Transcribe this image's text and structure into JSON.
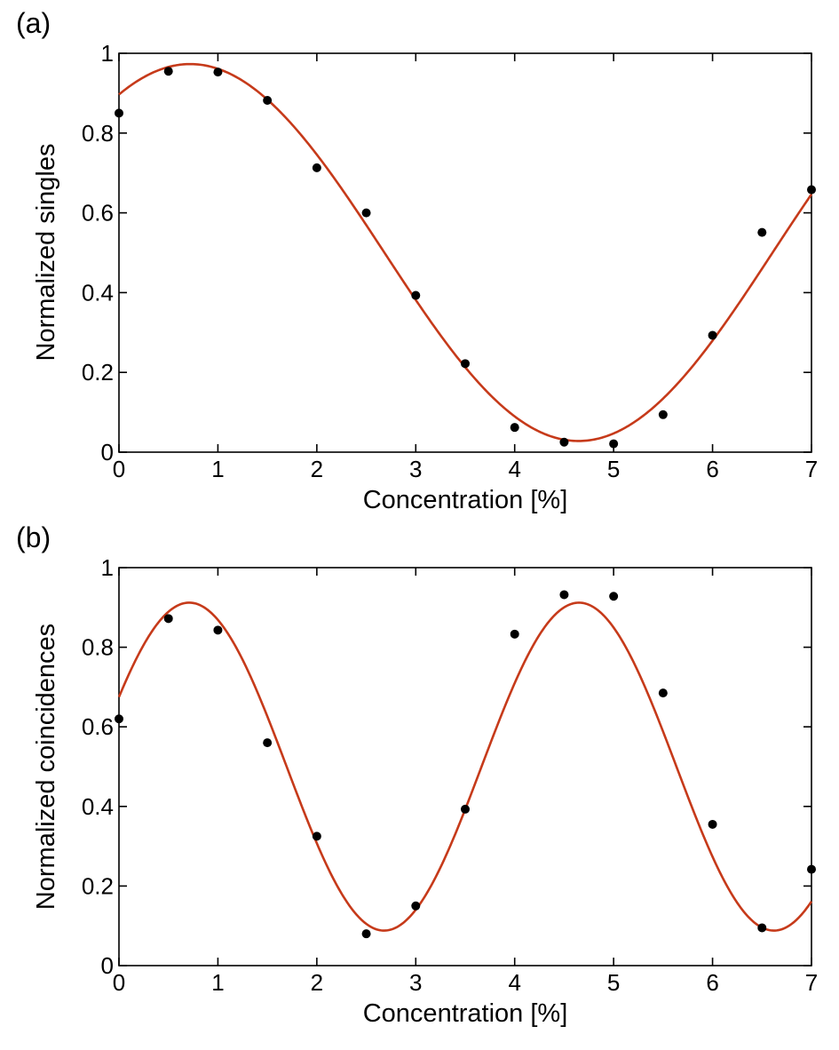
{
  "colors": {
    "fit_line": "#c63a1a",
    "points": "#000000",
    "axes": "#000000",
    "background": "#ffffff"
  },
  "chart_data": [
    {
      "type": "scatter",
      "panel_label": "(a)",
      "xlabel": "Concentration [%]",
      "ylabel": "Normalized singles",
      "xlim": [
        0,
        7
      ],
      "ylim": [
        0,
        1
      ],
      "xticks": [
        0,
        1,
        2,
        3,
        4,
        5,
        6,
        7
      ],
      "xtick_labels": [
        "0",
        "1",
        "2",
        "3",
        "4",
        "5",
        "6",
        "7"
      ],
      "yticks": [
        0,
        0.2,
        0.4,
        0.6,
        0.8,
        1
      ],
      "ytick_labels": [
        "0",
        "0.2",
        "0.4",
        "0.6",
        "0.8",
        "1"
      ],
      "series": [
        {
          "name": "data",
          "kind": "points",
          "x": [
            0,
            0.5,
            1,
            1.5,
            2,
            2.5,
            3,
            3.5,
            4,
            4.5,
            5,
            5.5,
            6,
            6.5,
            7
          ],
          "y": [
            0.85,
            0.955,
            0.953,
            0.882,
            0.713,
            0.6,
            0.393,
            0.222,
            0.062,
            0.025,
            0.021,
            0.094,
            0.293,
            0.551,
            0.658
          ]
        },
        {
          "name": "fit",
          "kind": "line",
          "model": "offset + amplitude * cos(2*pi*(x - peak)/period)",
          "params": {
            "offset": 0.5005,
            "amplitude": 0.4725,
            "peak": 0.72,
            "period": 7.85
          }
        }
      ]
    },
    {
      "type": "scatter",
      "panel_label": "(b)",
      "xlabel": "Concentration [%]",
      "ylabel": "Normalized coincidences",
      "xlim": [
        0,
        7
      ],
      "ylim": [
        0,
        1
      ],
      "xticks": [
        0,
        1,
        2,
        3,
        4,
        5,
        6,
        7
      ],
      "xtick_labels": [
        "0",
        "1",
        "2",
        "3",
        "4",
        "5",
        "6",
        "7"
      ],
      "yticks": [
        0,
        0.2,
        0.4,
        0.6,
        0.8,
        1
      ],
      "ytick_labels": [
        "0",
        "0.2",
        "0.4",
        "0.6",
        "0.8",
        "1"
      ],
      "series": [
        {
          "name": "data",
          "kind": "points",
          "x": [
            0,
            0.5,
            1,
            1.5,
            2,
            2.5,
            3,
            3.5,
            4,
            4.5,
            5,
            5.5,
            6,
            6.5,
            7
          ],
          "y": [
            0.62,
            0.872,
            0.843,
            0.56,
            0.325,
            0.08,
            0.15,
            0.393,
            0.833,
            0.932,
            0.928,
            0.685,
            0.355,
            0.095,
            0.242
          ]
        },
        {
          "name": "fit",
          "kind": "line",
          "model": "offset + amplitude * cos(2*pi*(x - peak)/period)",
          "params": {
            "offset": 0.5,
            "amplitude": 0.412,
            "peak": 0.71,
            "period": 3.94
          }
        }
      ]
    }
  ]
}
